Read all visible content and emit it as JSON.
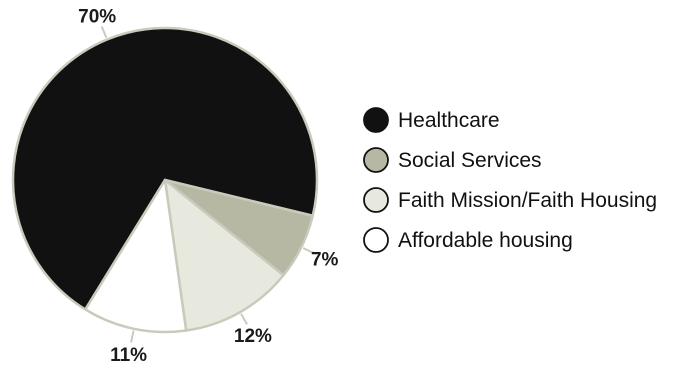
{
  "chart_data": {
    "type": "pie",
    "title": "",
    "slices": [
      {
        "label": "Healthcare",
        "value": 70,
        "value_label": "70%",
        "color": "#111111"
      },
      {
        "label": "Social Services",
        "value": 7,
        "value_label": "7%",
        "color": "#b7b8a3"
      },
      {
        "label": "Faith Mission/Faith Housing",
        "value": 12,
        "value_label": "12%",
        "color": "#e8e9de"
      },
      {
        "label": "Affordable housing",
        "value": 11,
        "value_label": "11%",
        "color": "#ffffff"
      }
    ],
    "legend_position": "right"
  }
}
